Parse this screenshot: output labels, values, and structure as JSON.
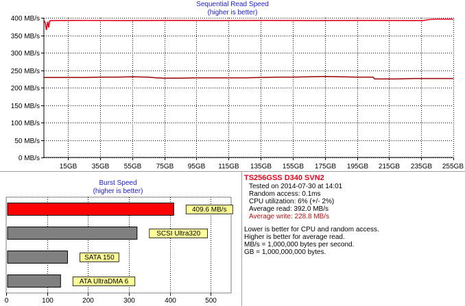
{
  "chart_data": [
    {
      "type": "line",
      "title": "Sequential Read Speed",
      "subtitle": "(higher is better)",
      "xlabel": "",
      "ylabel": "",
      "xlim": [
        0,
        255
      ],
      "ylim": [
        0,
        400
      ],
      "yticks": [
        0,
        50,
        100,
        150,
        200,
        250,
        300,
        350,
        400
      ],
      "ytick_labels": [
        "0 MB/s",
        "50 MB/s",
        "100 MB/s",
        "150 MB/s",
        "200 MB/s",
        "250 MB/s",
        "300 MB/s",
        "350 MB/s",
        "400 MB/s"
      ],
      "xticks": [
        15,
        35,
        55,
        75,
        95,
        115,
        135,
        155,
        175,
        195,
        215,
        235,
        255
      ],
      "xtick_labels": [
        "15GB",
        "35GB",
        "55GB",
        "75GB",
        "95GB",
        "115GB",
        "135GB",
        "155GB",
        "175GB",
        "195GB",
        "215GB",
        "235GB",
        "255GB"
      ],
      "grid": true,
      "series": [
        {
          "color": "#e8001c",
          "x": [
            0,
            0.8,
            1.6,
            2.4,
            3.0,
            3.6,
            4.6,
            6,
            20,
            50,
            80,
            110,
            140,
            170,
            200,
            230,
            236,
            240,
            244,
            250,
            255
          ],
          "y": [
            392,
            386,
            365,
            389,
            372,
            391,
            392,
            392,
            392.5,
            392,
            392.5,
            392,
            392.5,
            392,
            392.5,
            392,
            392,
            395,
            396,
            396,
            396
          ]
        },
        {
          "color": "#a01010",
          "x": [
            0,
            15,
            25,
            35,
            45,
            55,
            65,
            70,
            75,
            85,
            95,
            105,
            115,
            125,
            135,
            145,
            155,
            165,
            175,
            185,
            195,
            205,
            206,
            210,
            220,
            230,
            240,
            250,
            255
          ],
          "y": [
            229,
            229,
            229,
            230,
            230,
            231,
            230,
            228,
            227,
            227,
            228,
            228,
            228,
            228,
            229,
            230,
            230,
            231,
            232,
            231,
            230,
            230,
            225,
            225,
            225,
            226,
            226,
            226,
            226
          ]
        }
      ]
    },
    {
      "type": "bar",
      "orientation": "horizontal",
      "title": "Burst Speed",
      "subtitle": "(higher is better)",
      "xlim": [
        0,
        550
      ],
      "xticks": [
        0,
        100,
        200,
        300,
        400,
        500
      ],
      "grid": true,
      "categories": [
        "409.6 MB/s",
        "SCSI Ultra320",
        "SATA 150",
        "ATA UltraDMA 6"
      ],
      "values": [
        409.6,
        320,
        150,
        133
      ],
      "colors": [
        "#ff0000",
        "#808080",
        "#808080",
        "#808080"
      ]
    }
  ],
  "info": {
    "model": "TS256GSS D340 SVN2",
    "tested": "Tested on 2014-07-30 at 14:01",
    "random_access": "Random access: 0.1ms",
    "cpu": "CPU utilization: 6% (+/- 2%)",
    "avg_read": "Average read: 392.0 MB/s",
    "avg_write": "Average write: 228.8 MB/s",
    "note1": "Lower is better for CPU and random access.",
    "note2": "Higher is better for average read.",
    "note3": "MB/s = 1,000,000 bytes per second.",
    "note4": "GB = 1,000,000,000 bytes."
  }
}
